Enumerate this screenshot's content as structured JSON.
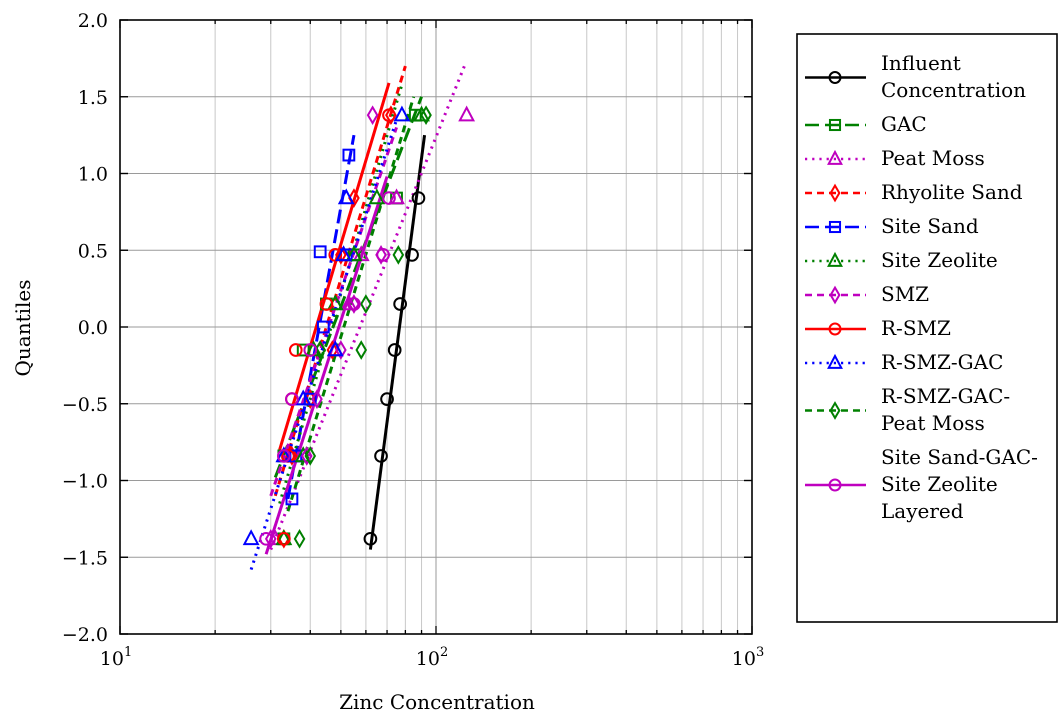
{
  "chart_data": {
    "type": "scatter",
    "xlabel": "Zinc Concentration",
    "ylabel": "Quantiles",
    "xscale": "log",
    "xlim": [
      10,
      1000
    ],
    "ylim": [
      -2.0,
      2.0
    ],
    "grid": true,
    "legend_position": "right-outside",
    "x_ticks": [
      {
        "value": 10,
        "base": "10",
        "exp": "1"
      },
      {
        "value": 100,
        "base": "10",
        "exp": "2"
      },
      {
        "value": 1000,
        "base": "10",
        "exp": "3"
      }
    ],
    "y_ticks": [
      {
        "value": 2.0,
        "label": "2.0"
      },
      {
        "value": 1.5,
        "label": "1.5"
      },
      {
        "value": 1.0,
        "label": "1.0"
      },
      {
        "value": 0.5,
        "label": "0.5"
      },
      {
        "value": 0.0,
        "label": "0.0"
      },
      {
        "value": -0.5,
        "label": "−0.5"
      },
      {
        "value": -1.0,
        "label": "−1.0"
      },
      {
        "value": -1.5,
        "label": "−1.5"
      },
      {
        "value": -2.0,
        "label": "−2.0"
      }
    ],
    "series": [
      {
        "name": [
          "Influent",
          "Concentration"
        ],
        "color": "#000000",
        "marker": "circle",
        "dash": "solid",
        "x": [
          62,
          67,
          70,
          74,
          77,
          84,
          88
        ],
        "y": [
          -1.38,
          -0.84,
          -0.47,
          -0.15,
          0.15,
          0.47,
          0.84
        ],
        "fit": [
          [
            62,
            -1.45
          ],
          [
            92,
            1.25
          ]
        ]
      },
      {
        "name": [
          "GAC"
        ],
        "color": "#008000",
        "marker": "square",
        "dash": "longdash",
        "x": [
          33,
          33,
          38,
          45,
          55,
          75,
          86
        ],
        "y": [
          -1.38,
          -0.84,
          -0.15,
          0.15,
          0.47,
          0.84,
          1.38
        ],
        "fit": [
          [
            31,
            -0.98
          ],
          [
            90,
            1.5
          ]
        ]
      },
      {
        "name": [
          "Peat Moss"
        ],
        "color": "#bf00bf",
        "marker": "triangle",
        "dash": "dot",
        "x": [
          31,
          38,
          48,
          53,
          58,
          75,
          125
        ],
        "y": [
          -1.38,
          -0.84,
          -0.15,
          0.15,
          0.47,
          0.84,
          1.38
        ],
        "fit": [
          [
            30,
            -1.45
          ],
          [
            123,
            1.7
          ]
        ]
      },
      {
        "name": [
          "Rhyolite Sand"
        ],
        "color": "#ff0000",
        "marker": "diamond",
        "dash": "dash",
        "x": [
          33,
          35,
          40,
          47,
          50,
          55,
          72
        ],
        "y": [
          -1.38,
          -0.84,
          -0.47,
          -0.15,
          0.47,
          0.84,
          1.38
        ],
        "fit": [
          [
            31,
            -1.1
          ],
          [
            80,
            1.7
          ]
        ]
      },
      {
        "name": [
          "Site Sand"
        ],
        "color": "#0000ff",
        "marker": "square",
        "dash": "longdash",
        "x": [
          35,
          36,
          40,
          44,
          43,
          52,
          53
        ],
        "y": [
          -1.12,
          -0.84,
          -0.47,
          0.0,
          0.49,
          0.47,
          1.12
        ],
        "fit": [
          [
            34,
            -1.12
          ],
          [
            55,
            1.25
          ]
        ]
      },
      {
        "name": [
          "Site Zeolite"
        ],
        "color": "#008000",
        "marker": "triangle",
        "dash": "dot",
        "x": [
          33,
          38,
          41,
          48,
          55,
          65,
          90
        ],
        "y": [
          -1.38,
          -0.84,
          -0.15,
          0.15,
          0.47,
          0.84,
          1.38
        ],
        "fit": [
          [
            32,
            -1.15
          ],
          [
            78,
            1.58
          ]
        ]
      },
      {
        "name": [
          "SMZ"
        ],
        "color": "#bf00bf",
        "marker": "diamond",
        "dash": "dash",
        "x": [
          30,
          39,
          42,
          50,
          55,
          67,
          63
        ],
        "y": [
          -1.38,
          -0.84,
          -0.47,
          -0.15,
          0.15,
          0.47,
          1.38
        ],
        "fit": [
          [
            30,
            -1.1
          ],
          [
            75,
            1.3
          ]
        ]
      },
      {
        "name": [
          "R-SMZ"
        ],
        "color": "#ff0000",
        "marker": "circle",
        "dash": "solid",
        "x": [
          33,
          34,
          35,
          36,
          45,
          48,
          71
        ],
        "y": [
          -1.38,
          -0.84,
          -0.47,
          -0.15,
          0.15,
          0.47,
          1.38
        ],
        "fit": [
          [
            32,
            -0.8
          ],
          [
            71,
            1.59
          ]
        ]
      },
      {
        "name": [
          "R-SMZ-GAC"
        ],
        "color": "#0000ff",
        "marker": "triangle",
        "dash": "dot",
        "x": [
          26,
          33,
          38,
          48,
          51,
          52,
          78
        ],
        "y": [
          -1.38,
          -0.84,
          -0.47,
          -0.15,
          0.47,
          0.84,
          1.38
        ],
        "fit": [
          [
            26,
            -1.58
          ],
          [
            75,
            1.35
          ]
        ]
      },
      {
        "name": [
          "R-SMZ-GAC-",
          "Peat Moss"
        ],
        "color": "#008000",
        "marker": "diamond",
        "dash": "dash",
        "x": [
          37,
          40,
          43,
          58,
          60,
          76,
          93
        ],
        "y": [
          -1.38,
          -0.84,
          -0.15,
          -0.15,
          0.15,
          0.47,
          1.38
        ],
        "fit": [
          [
            34,
            -1.2
          ],
          [
            85,
            1.5
          ]
        ]
      },
      {
        "name": [
          "Site Sand-GAC-",
          "Site Zeolite",
          "Layered"
        ],
        "color": "#bf00bf",
        "marker": "circle",
        "dash": "solid",
        "x": [
          29,
          33,
          35,
          40,
          55,
          68,
          71
        ],
        "y": [
          -1.38,
          -0.84,
          -0.47,
          -0.15,
          0.15,
          0.47,
          0.84
        ],
        "fit": [
          [
            29,
            -1.48
          ],
          [
            70,
            0.98
          ]
        ]
      }
    ]
  }
}
